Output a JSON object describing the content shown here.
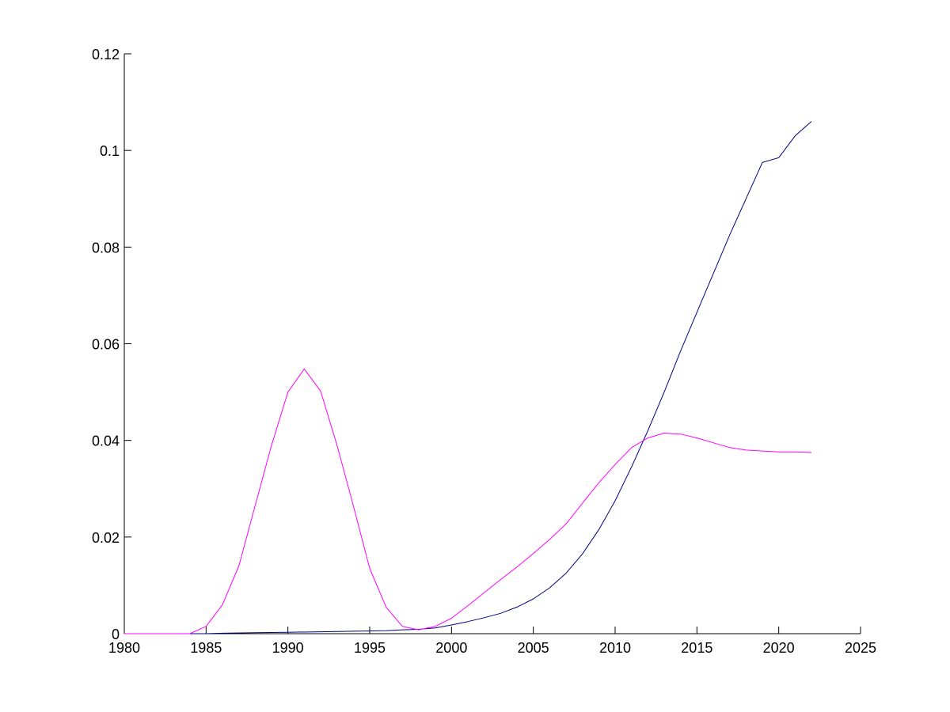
{
  "chart_data": {
    "type": "line",
    "title": "",
    "xlabel": "",
    "ylabel": "",
    "xlim": [
      1980,
      2025
    ],
    "ylim": [
      0,
      0.12
    ],
    "grid": false,
    "x_ticks": [
      1980,
      1985,
      1990,
      1995,
      2000,
      2005,
      2010,
      2015,
      2020,
      2025
    ],
    "y_ticks": [
      0,
      0.02,
      0.04,
      0.06,
      0.08,
      0.1,
      0.12
    ],
    "x_tick_labels": [
      "1980",
      "1985",
      "1990",
      "1995",
      "2000",
      "2005",
      "2010",
      "2015",
      "2020",
      "2025"
    ],
    "y_tick_labels": [
      "0",
      "0.02",
      "0.04",
      "0.06",
      "0.08",
      "0.1",
      "0.12"
    ],
    "series": [
      {
        "color": "#000080",
        "points": [
          [
            1980,
            0
          ],
          [
            1985,
            0
          ],
          [
            1986,
            0.0001
          ],
          [
            1988,
            0.0002
          ],
          [
            1990,
            0.0003
          ],
          [
            1992,
            0.0004
          ],
          [
            1994,
            0.0005
          ],
          [
            1996,
            0.0006
          ],
          [
            1997,
            0.0008
          ],
          [
            1998,
            0.0009
          ],
          [
            1999,
            0.0012
          ],
          [
            2000,
            0.0018
          ],
          [
            2001,
            0.0025
          ],
          [
            2002,
            0.0033
          ],
          [
            2003,
            0.0042
          ],
          [
            2004,
            0.0055
          ],
          [
            2005,
            0.0072
          ],
          [
            2006,
            0.0095
          ],
          [
            2007,
            0.0125
          ],
          [
            2008,
            0.0165
          ],
          [
            2009,
            0.0215
          ],
          [
            2010,
            0.0275
          ],
          [
            2011,
            0.0345
          ],
          [
            2012,
            0.042
          ],
          [
            2013,
            0.05
          ],
          [
            2014,
            0.0585
          ],
          [
            2015,
            0.0665
          ],
          [
            2016,
            0.0745
          ],
          [
            2017,
            0.0825
          ],
          [
            2018,
            0.09
          ],
          [
            2019,
            0.0975
          ],
          [
            2020,
            0.0985
          ],
          [
            2021,
            0.103
          ],
          [
            2022,
            0.106
          ]
        ]
      },
      {
        "color": "#ff00ff",
        "points": [
          [
            1980,
            0
          ],
          [
            1984,
            0
          ],
          [
            1985,
            0.0015
          ],
          [
            1986,
            0.006
          ],
          [
            1987,
            0.014
          ],
          [
            1988,
            0.0265
          ],
          [
            1989,
            0.039
          ],
          [
            1990,
            0.05
          ],
          [
            1991,
            0.0548
          ],
          [
            1992,
            0.0502
          ],
          [
            1993,
            0.039
          ],
          [
            1994,
            0.0265
          ],
          [
            1995,
            0.0135
          ],
          [
            1996,
            0.0055
          ],
          [
            1997,
            0.0015
          ],
          [
            1998,
            0.0008
          ],
          [
            1999,
            0.0015
          ],
          [
            2000,
            0.0032
          ],
          [
            2001,
            0.0058
          ],
          [
            2002,
            0.0085
          ],
          [
            2003,
            0.0112
          ],
          [
            2004,
            0.0138
          ],
          [
            2005,
            0.0166
          ],
          [
            2006,
            0.0195
          ],
          [
            2007,
            0.0227
          ],
          [
            2008,
            0.027
          ],
          [
            2009,
            0.0312
          ],
          [
            2010,
            0.035
          ],
          [
            2011,
            0.0385
          ],
          [
            2012,
            0.0405
          ],
          [
            2013,
            0.0415
          ],
          [
            2014,
            0.0413
          ],
          [
            2015,
            0.0405
          ],
          [
            2016,
            0.0395
          ],
          [
            2017,
            0.0385
          ],
          [
            2018,
            0.038
          ],
          [
            2019,
            0.0378
          ],
          [
            2020,
            0.0376
          ],
          [
            2021,
            0.0376
          ],
          [
            2022,
            0.0375
          ]
        ]
      }
    ]
  }
}
